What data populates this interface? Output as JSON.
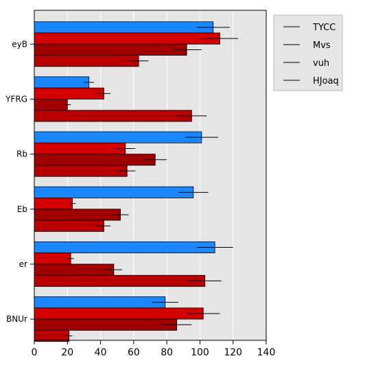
{
  "chart_data": {
    "type": "bar",
    "orientation": "horizontal",
    "categories": [
      "eyB",
      "YFRG",
      "Rb",
      "Eb",
      "er",
      "BNUr"
    ],
    "series": [
      {
        "name": "TYCC",
        "color": "#1a87ff",
        "values": [
          108,
          33,
          101,
          96,
          109,
          79
        ],
        "errors": [
          10,
          3,
          10,
          9,
          11,
          8
        ]
      },
      {
        "name": "Mvs",
        "color": "#d40000",
        "values": [
          112,
          42,
          55,
          23,
          22,
          102
        ],
        "errors": [
          11,
          4,
          6,
          2,
          2,
          10
        ]
      },
      {
        "name": "vuh",
        "color": "#a00000",
        "values": [
          92,
          20,
          73,
          52,
          48,
          86
        ],
        "errors": [
          9,
          2,
          7,
          5,
          5,
          9
        ]
      },
      {
        "name": "HJoaq",
        "color": "#b80000",
        "values": [
          63,
          95,
          56,
          42,
          103,
          21
        ],
        "errors": [
          6,
          9,
          5,
          4,
          10,
          2
        ]
      }
    ],
    "xlim": [
      0,
      140
    ],
    "xticks": [
      "0",
      "20",
      "40",
      "60",
      "80",
      "100",
      "120",
      "140"
    ],
    "xtick_values": [
      0,
      20,
      40,
      60,
      80,
      100,
      120,
      140
    ],
    "grid": true,
    "legend_position": "top-right outside"
  }
}
